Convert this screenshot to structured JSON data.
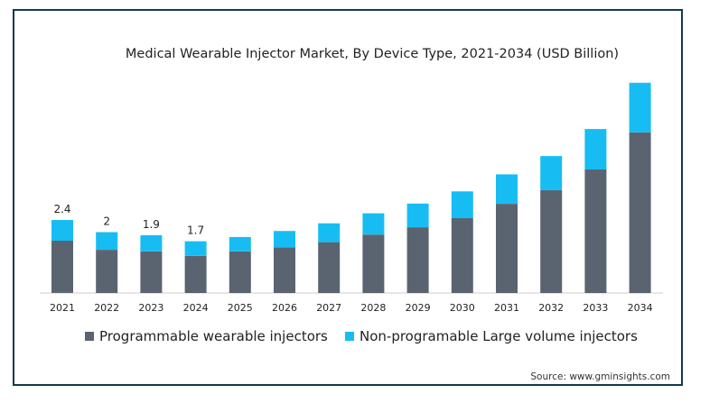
{
  "chart_data": {
    "type": "bar",
    "stacked": true,
    "title": "Medical Wearable Injector Market, By Device Type, 2021-2034 (USD Billion)",
    "categories": [
      "2021",
      "2022",
      "2023",
      "2024",
      "2025",
      "2026",
      "2027",
      "2028",
      "2029",
      "2030",
      "2031",
      "2032",
      "2033",
      "2034"
    ],
    "series": [
      {
        "name": "Programmable wearable injectors",
        "color": "#5a6470",
        "values": [
          1.72,
          1.42,
          1.37,
          1.22,
          1.37,
          1.5,
          1.67,
          1.92,
          2.16,
          2.46,
          2.93,
          3.38,
          4.06,
          5.28
        ]
      },
      {
        "name": "Non-programable Large volume injectors",
        "color": "#17bdf2",
        "values": [
          0.68,
          0.58,
          0.53,
          0.48,
          0.47,
          0.54,
          0.62,
          0.7,
          0.78,
          0.88,
          0.97,
          1.12,
          1.33,
          1.63
        ]
      }
    ],
    "data_labels": [
      "2.4",
      "2",
      "1.9",
      "1.7"
    ],
    "ylim": [
      0,
      7.2
    ],
    "grid": false,
    "legend_position": "bottom"
  },
  "source": "Source: www.gminsights.com"
}
